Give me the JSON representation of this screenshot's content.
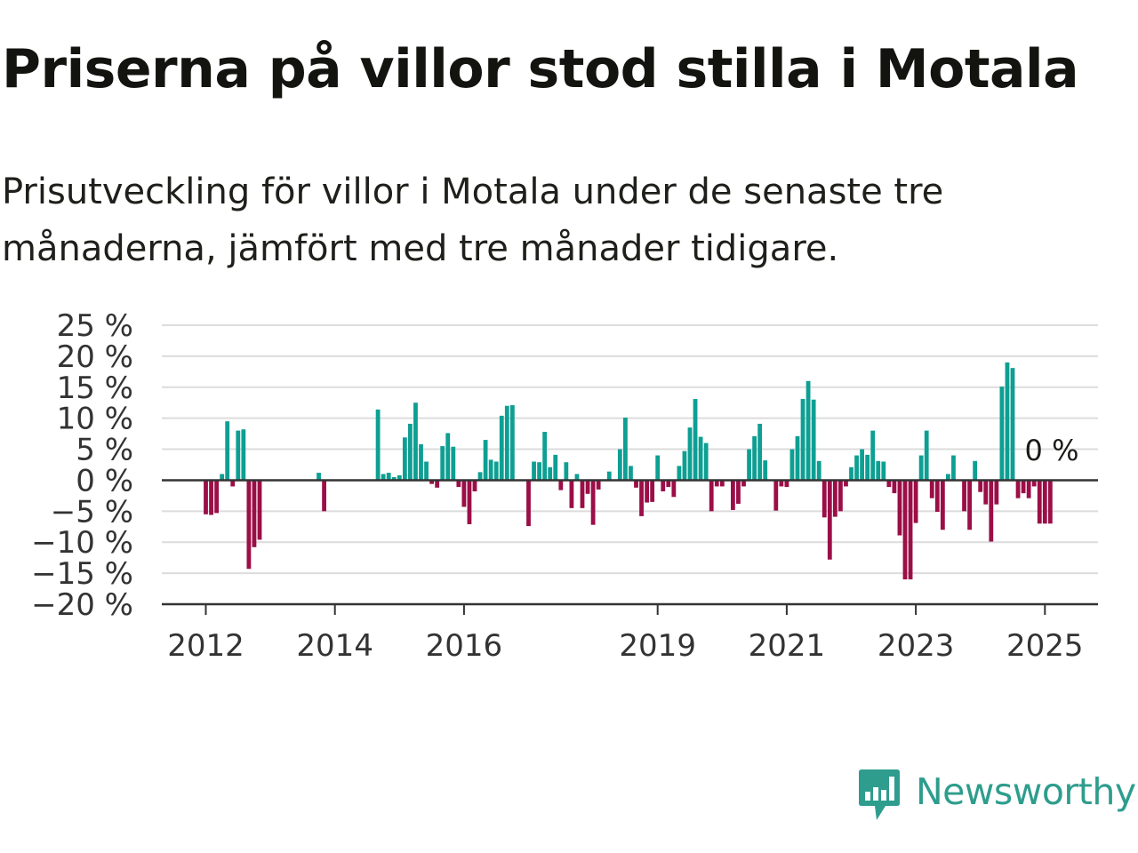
{
  "header": {
    "title": "Priserna på villor stod stilla i Motala",
    "subtitle": "Prisutveckling för villor i Motala under de senaste tre månaderna, jämfört med tre månader tidigare."
  },
  "brand": {
    "name": "Newsworthy",
    "icon": "newsworthy-logo-icon",
    "color": "#2e9d8d"
  },
  "colors": {
    "positive": "#0e9f93",
    "negative": "#9b0e47",
    "grid": "#dcdcdc",
    "axis": "#333333"
  },
  "chart_data": {
    "type": "bar",
    "title": "",
    "xlabel": "",
    "ylabel": "",
    "ylim": [
      -20,
      25
    ],
    "y_ticks": [
      25,
      20,
      15,
      10,
      5,
      0,
      -5,
      -10,
      -15,
      -20
    ],
    "y_tick_labels": [
      "25 %",
      "20 %",
      "15 %",
      "10 %",
      "5 %",
      "0 %",
      "−5 %",
      "−10 %",
      "−15 %",
      "−20 %"
    ],
    "x_ticks": [
      "2012-01",
      "2014-01",
      "2016-01",
      "2019-01",
      "2021-01",
      "2023-01",
      "2025-01"
    ],
    "x_tick_labels": [
      "2012",
      "2014",
      "2016",
      "2019",
      "2021",
      "2023",
      "2025"
    ],
    "grid": true,
    "last_value_label": "0 %",
    "series": [
      {
        "values": [
          [
            "2012-01",
            -5.5
          ],
          [
            "2012-02",
            -5.6
          ],
          [
            "2012-03",
            -5.3
          ],
          [
            "2012-04",
            1.0
          ],
          [
            "2012-05",
            9.5
          ],
          [
            "2012-06",
            -1.0
          ],
          [
            "2012-07",
            8.0
          ],
          [
            "2012-08",
            8.2
          ],
          [
            "2012-09",
            -14.3
          ],
          [
            "2012-10",
            -10.8
          ],
          [
            "2012-11",
            -9.6
          ],
          [
            "2013-10",
            1.2
          ],
          [
            "2013-11",
            -5.0
          ],
          [
            "2014-09",
            11.4
          ],
          [
            "2014-10",
            1.0
          ],
          [
            "2014-11",
            1.2
          ],
          [
            "2014-12",
            0.5
          ],
          [
            "2015-01",
            0.8
          ],
          [
            "2015-02",
            6.9
          ],
          [
            "2015-03",
            9.1
          ],
          [
            "2015-04",
            12.5
          ],
          [
            "2015-05",
            5.8
          ],
          [
            "2015-06",
            3.0
          ],
          [
            "2015-07",
            -0.6
          ],
          [
            "2015-08",
            -1.2
          ],
          [
            "2015-09",
            5.5
          ],
          [
            "2015-10",
            7.6
          ],
          [
            "2015-11",
            5.4
          ],
          [
            "2015-12",
            -1.1
          ],
          [
            "2016-01",
            -4.3
          ],
          [
            "2016-02",
            -7.1
          ],
          [
            "2016-03",
            -1.8
          ],
          [
            "2016-04",
            1.3
          ],
          [
            "2016-05",
            6.5
          ],
          [
            "2016-06",
            3.3
          ],
          [
            "2016-07",
            3.0
          ],
          [
            "2016-08",
            10.4
          ],
          [
            "2016-09",
            12.0
          ],
          [
            "2016-10",
            12.1
          ],
          [
            "2017-01",
            -7.4
          ],
          [
            "2017-02",
            3.0
          ],
          [
            "2017-03",
            2.9
          ],
          [
            "2017-04",
            7.8
          ],
          [
            "2017-05",
            2.1
          ],
          [
            "2017-06",
            4.1
          ],
          [
            "2017-07",
            -1.6
          ],
          [
            "2017-08",
            2.9
          ],
          [
            "2017-09",
            -4.5
          ],
          [
            "2017-10",
            1.0
          ],
          [
            "2017-11",
            -4.5
          ],
          [
            "2017-12",
            -2.2
          ],
          [
            "2018-01",
            -7.2
          ],
          [
            "2018-02",
            -1.5
          ],
          [
            "2018-04",
            1.4
          ],
          [
            "2018-06",
            5.0
          ],
          [
            "2018-07",
            10.1
          ],
          [
            "2018-08",
            2.3
          ],
          [
            "2018-09",
            -1.2
          ],
          [
            "2018-10",
            -5.8
          ],
          [
            "2018-11",
            -3.6
          ],
          [
            "2018-12",
            -3.5
          ],
          [
            "2019-01",
            4.0
          ],
          [
            "2019-02",
            -1.8
          ],
          [
            "2019-03",
            -1.1
          ],
          [
            "2019-04",
            -2.7
          ],
          [
            "2019-05",
            2.3
          ],
          [
            "2019-06",
            4.7
          ],
          [
            "2019-07",
            8.5
          ],
          [
            "2019-08",
            13.1
          ],
          [
            "2019-09",
            7.0
          ],
          [
            "2019-10",
            6.0
          ],
          [
            "2019-11",
            -5.0
          ],
          [
            "2019-12",
            -1.0
          ],
          [
            "2020-01",
            -1.0
          ],
          [
            "2020-03",
            -4.8
          ],
          [
            "2020-04",
            -3.8
          ],
          [
            "2020-05",
            -1.0
          ],
          [
            "2020-06",
            5.0
          ],
          [
            "2020-07",
            7.1
          ],
          [
            "2020-08",
            9.1
          ],
          [
            "2020-09",
            3.2
          ],
          [
            "2020-11",
            -4.9
          ],
          [
            "2020-12",
            -1.0
          ],
          [
            "2021-01",
            -1.1
          ],
          [
            "2021-02",
            5.0
          ],
          [
            "2021-03",
            7.1
          ],
          [
            "2021-04",
            13.1
          ],
          [
            "2021-05",
            16.0
          ],
          [
            "2021-06",
            13.0
          ],
          [
            "2021-07",
            3.1
          ],
          [
            "2021-08",
            -6.0
          ],
          [
            "2021-09",
            -12.8
          ],
          [
            "2021-10",
            -5.9
          ],
          [
            "2021-11",
            -5.0
          ],
          [
            "2021-12",
            -1.0
          ],
          [
            "2022-01",
            2.1
          ],
          [
            "2022-02",
            4.0
          ],
          [
            "2022-03",
            5.0
          ],
          [
            "2022-04",
            4.1
          ],
          [
            "2022-05",
            8.0
          ],
          [
            "2022-06",
            3.1
          ],
          [
            "2022-07",
            3.0
          ],
          [
            "2022-08",
            -1.1
          ],
          [
            "2022-09",
            -2.1
          ],
          [
            "2022-10",
            -8.9
          ],
          [
            "2022-11",
            -16.0
          ],
          [
            "2022-12",
            -16.0
          ],
          [
            "2023-01",
            -6.9
          ],
          [
            "2023-02",
            4.0
          ],
          [
            "2023-03",
            8.0
          ],
          [
            "2023-04",
            -2.9
          ],
          [
            "2023-05",
            -5.1
          ],
          [
            "2023-06",
            -8.0
          ],
          [
            "2023-07",
            1.0
          ],
          [
            "2023-08",
            4.0
          ],
          [
            "2023-10",
            -5.0
          ],
          [
            "2023-11",
            -8.0
          ],
          [
            "2023-12",
            3.1
          ],
          [
            "2024-01",
            -1.9
          ],
          [
            "2024-02",
            -3.9
          ],
          [
            "2024-03",
            -9.9
          ],
          [
            "2024-04",
            -3.9
          ],
          [
            "2024-05",
            15.1
          ],
          [
            "2024-06",
            19.0
          ],
          [
            "2024-07",
            18.1
          ],
          [
            "2024-08",
            -2.9
          ],
          [
            "2024-09",
            -2.1
          ],
          [
            "2024-10",
            -2.9
          ],
          [
            "2024-11",
            -1.0
          ],
          [
            "2024-12",
            -7.0
          ],
          [
            "2025-01",
            -7.0
          ],
          [
            "2025-02",
            -7.0
          ],
          [
            "2025-03",
            0
          ]
        ]
      }
    ]
  }
}
